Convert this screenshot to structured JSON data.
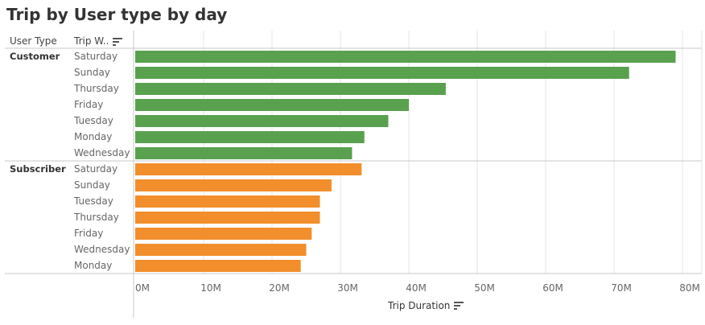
{
  "title": "Trip by User type by day",
  "headers": {
    "user_type": "User Type",
    "trip_weekday": "Trip W.."
  },
  "icons": {
    "sort": "sort-icon"
  },
  "colors": {
    "customer": "#59a14f",
    "subscriber": "#f28e2b",
    "grid": "#e6e6e6",
    "rule": "#c8c8c8"
  },
  "chart_data": {
    "type": "bar",
    "orientation": "horizontal",
    "title": "Trip by User type by day",
    "xlabel": "Trip Duration",
    "xlim": [
      0,
      82000000
    ],
    "x_ticks": [
      0,
      10000000,
      20000000,
      30000000,
      40000000,
      50000000,
      60000000,
      70000000,
      80000000
    ],
    "x_tick_labels": [
      "0M",
      "10M",
      "20M",
      "30M",
      "40M",
      "50M",
      "60M",
      "70M",
      "80M"
    ],
    "grid": true,
    "groups": [
      {
        "name": "Customer",
        "color": "#59a14f",
        "categories": [
          "Saturday",
          "Sunday",
          "Thursday",
          "Friday",
          "Tuesday",
          "Monday",
          "Wednesday"
        ],
        "values": [
          79000000,
          72200000,
          45400000,
          40000000,
          37000000,
          33500000,
          31700000
        ]
      },
      {
        "name": "Subscriber",
        "color": "#f28e2b",
        "categories": [
          "Saturday",
          "Sunday",
          "Tuesday",
          "Thursday",
          "Friday",
          "Wednesday",
          "Monday"
        ],
        "values": [
          33100000,
          28700000,
          27000000,
          27000000,
          25800000,
          25000000,
          24200000
        ]
      }
    ]
  }
}
